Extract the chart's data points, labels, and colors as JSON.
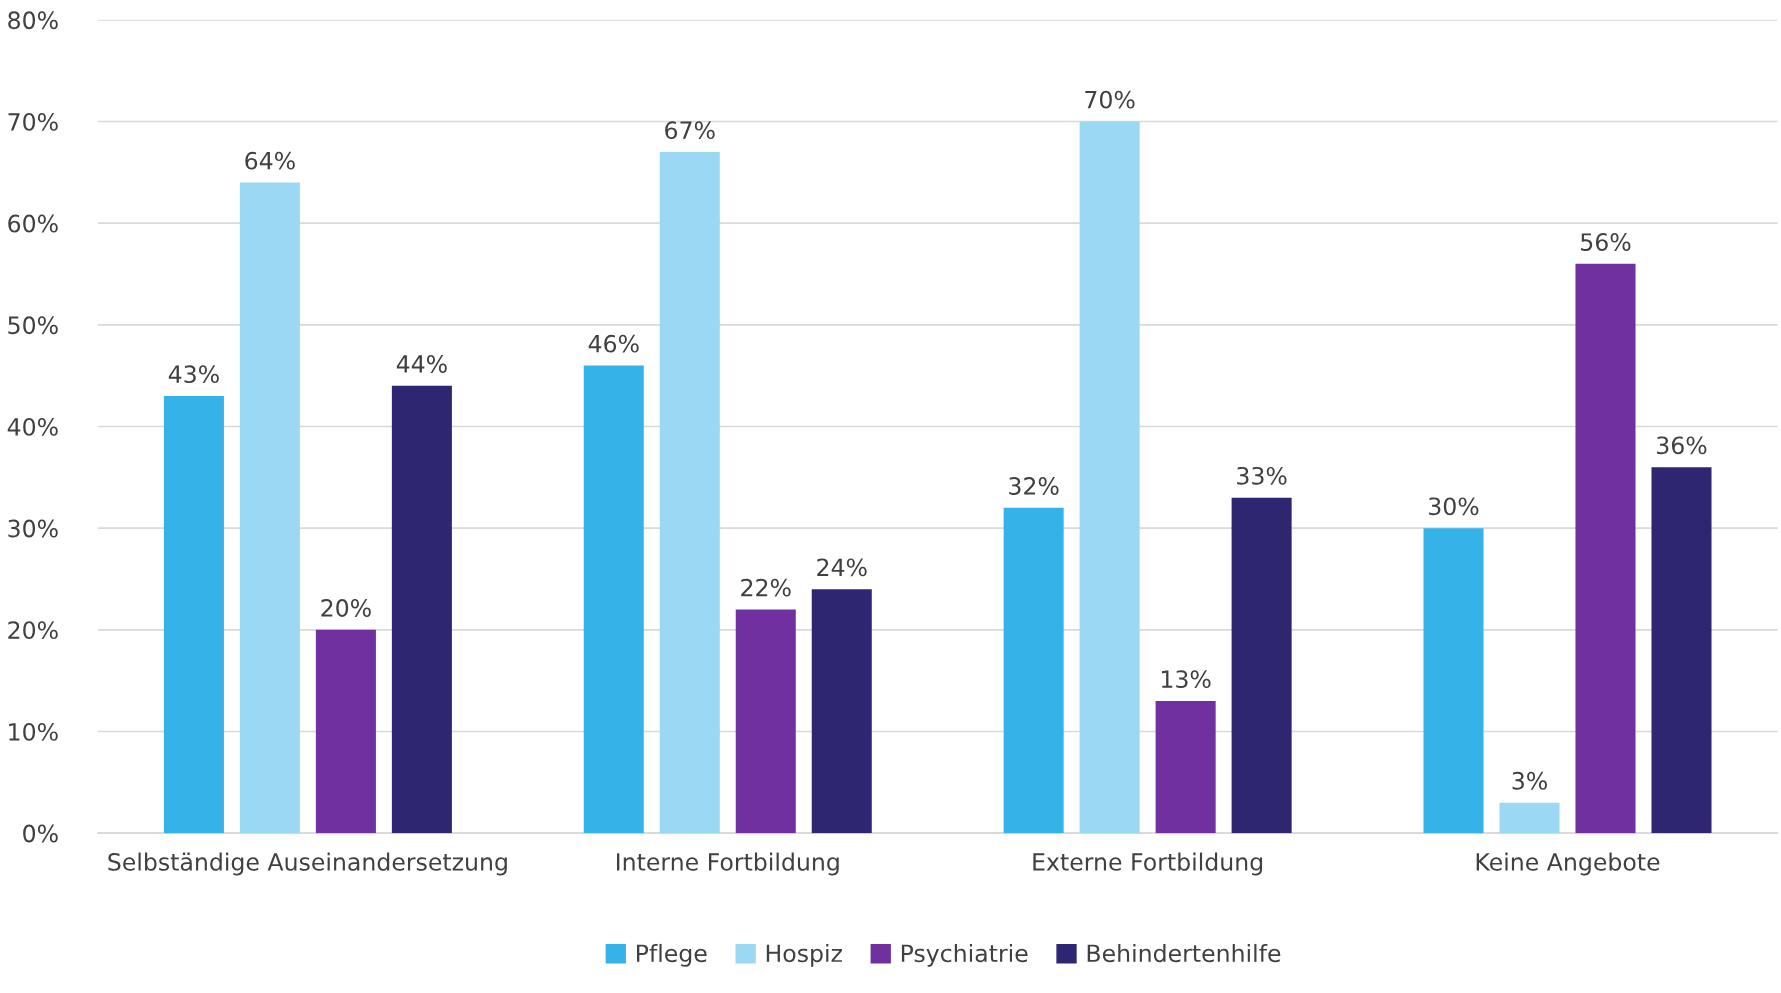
{
  "chart_data": {
    "type": "bar",
    "categories": [
      "Selbständige Auseinandersetzung",
      "Interne Fortbildung",
      "Externe Fortbildung",
      "Keine Angebote"
    ],
    "series": [
      {
        "name": "Pflege",
        "color": "#35b3e9",
        "values": [
          43,
          46,
          32,
          30
        ],
        "value_labels": [
          "43%",
          "46%",
          "32%",
          "30%"
        ]
      },
      {
        "name": "Hospiz",
        "color": "#9bd8f3",
        "values": [
          64,
          67,
          70,
          3
        ],
        "value_labels": [
          "64%",
          "67%",
          "70%",
          "3%"
        ]
      },
      {
        "name": "Psychiatrie",
        "color": "#7030a0",
        "values": [
          20,
          22,
          13,
          56
        ],
        "value_labels": [
          "20%",
          "22%",
          "13%",
          "56%"
        ]
      },
      {
        "name": "Behindertenhilfe",
        "color": "#2e2670",
        "values": [
          44,
          24,
          33,
          36
        ],
        "value_labels": [
          "44%",
          "24%",
          "33%",
          "36%"
        ]
      }
    ],
    "ylim": [
      0,
      80
    ],
    "yticks": [
      {
        "value": 0,
        "label": "0%"
      },
      {
        "value": 10,
        "label": "10%"
      },
      {
        "value": 20,
        "label": "20%"
      },
      {
        "value": 30,
        "label": "30%"
      },
      {
        "value": 40,
        "label": "40%"
      },
      {
        "value": 50,
        "label": "50%"
      },
      {
        "value": 60,
        "label": "60%"
      },
      {
        "value": 70,
        "label": "70%"
      },
      {
        "value": 80,
        "label": "80%"
      }
    ],
    "grid": "y",
    "legend": "bottom"
  }
}
